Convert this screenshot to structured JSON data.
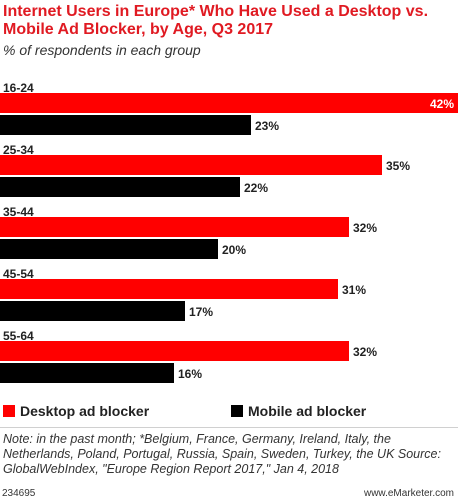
{
  "chart_data": {
    "type": "bar",
    "orientation": "horizontal",
    "title": "Internet Users in Europe* Who Have Used a Desktop vs. Mobile Ad Blocker, by Age, Q3 2017",
    "subtitle": "% of respondents in each group",
    "categories": [
      "16-24",
      "25-34",
      "35-44",
      "45-54",
      "55-64"
    ],
    "series": [
      {
        "name": "Desktop ad blocker",
        "color": "#ff0000",
        "values": [
          42,
          35,
          32,
          31,
          32
        ]
      },
      {
        "name": "Mobile ad blocker",
        "color": "#000000",
        "values": [
          23,
          22,
          20,
          17,
          16
        ]
      }
    ],
    "value_suffix": "%",
    "xlim": [
      0,
      42
    ],
    "grid": false,
    "legend_position": "bottom-left"
  },
  "footer": {
    "note": "Note: in the past month; *Belgium, France, Germany, Ireland, Italy, the Netherlands, Poland, Portugal, Russia, Spain, Sweden, Turkey, the UK Source: GlobalWebIndex, \"Europe Region Report 2017,\" Jan 4, 2018",
    "chart_id": "234695",
    "source_brand": "www.eMarketer.com"
  }
}
